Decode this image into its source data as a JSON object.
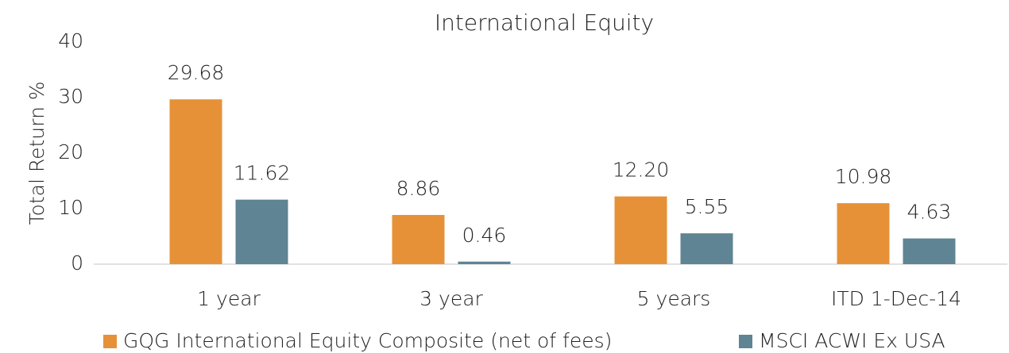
{
  "chart_data": {
    "type": "bar",
    "title": "International Equity",
    "y_label": "Total Return %",
    "categories": [
      "1 year",
      "3 year",
      "5 years",
      "ITD 1-Dec-14"
    ],
    "series": [
      {
        "name": "GQG International Equity Composite (net of fees)",
        "color": "#e69138",
        "values": [
          29.68,
          8.86,
          12.2,
          10.98
        ],
        "value_labels": [
          "29.68",
          "8.86",
          "12.20",
          "10.98"
        ]
      },
      {
        "name": "MSCI ACWI Ex USA",
        "color": "#5f8494",
        "values": [
          11.62,
          0.46,
          5.55,
          4.63
        ],
        "value_labels": [
          "11.62",
          "0.46",
          "5.55",
          "4.63"
        ]
      }
    ],
    "ylim": [
      0,
      40
    ],
    "yticks": [
      0,
      10,
      20,
      30,
      40
    ],
    "grid": false,
    "legend": "bottom"
  }
}
